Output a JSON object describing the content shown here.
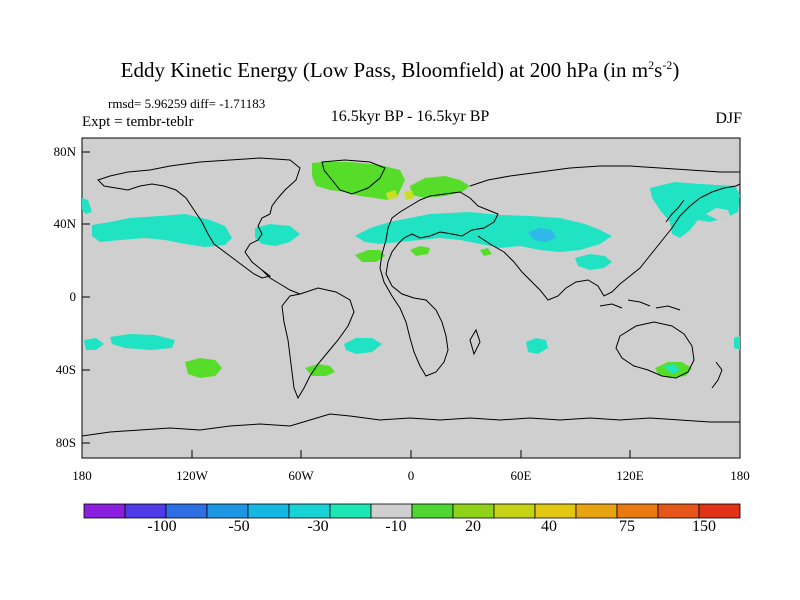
{
  "title": {
    "main": "Eddy Kinetic Energy (Low Pass, Bloomfield) at 200 hPa (in m",
    "sup1": "2",
    "mid": "s",
    "sup2": "-2",
    "end": ")"
  },
  "stats": "rmsd= 5.96259 diff= -1.71183",
  "expt": "Expt = tembr-teblr",
  "center_label": "16.5kyr BP - 16.5kyr BP",
  "season": "DJF",
  "y_ticks": [
    "80N",
    "40N",
    "0",
    "40S",
    "80S"
  ],
  "x_ticks": [
    "180",
    "120W",
    "60W",
    "0",
    "60E",
    "120E",
    "180"
  ],
  "colorbar": {
    "colors": [
      "#8a1fe0",
      "#4e3ae6",
      "#2f6fe5",
      "#1e96e6",
      "#14b8e3",
      "#18d3d5",
      "#1de7b4",
      "#cfcfcf",
      "#50d632",
      "#8fd21a",
      "#c4d315",
      "#e2c812",
      "#e8a410",
      "#e87a10",
      "#e6551a",
      "#e23318"
    ],
    "labels": [
      "-100",
      "-50",
      "-30",
      "-10",
      "20",
      "40",
      "75",
      "150"
    ]
  },
  "colors": {
    "ocean_land_neutral": "#cfcfcf",
    "positive_green": "#55dd2a",
    "negative_cyan": "#1fe3c2",
    "yellow": "#c8e020",
    "blue": "#2fb8e8"
  }
}
